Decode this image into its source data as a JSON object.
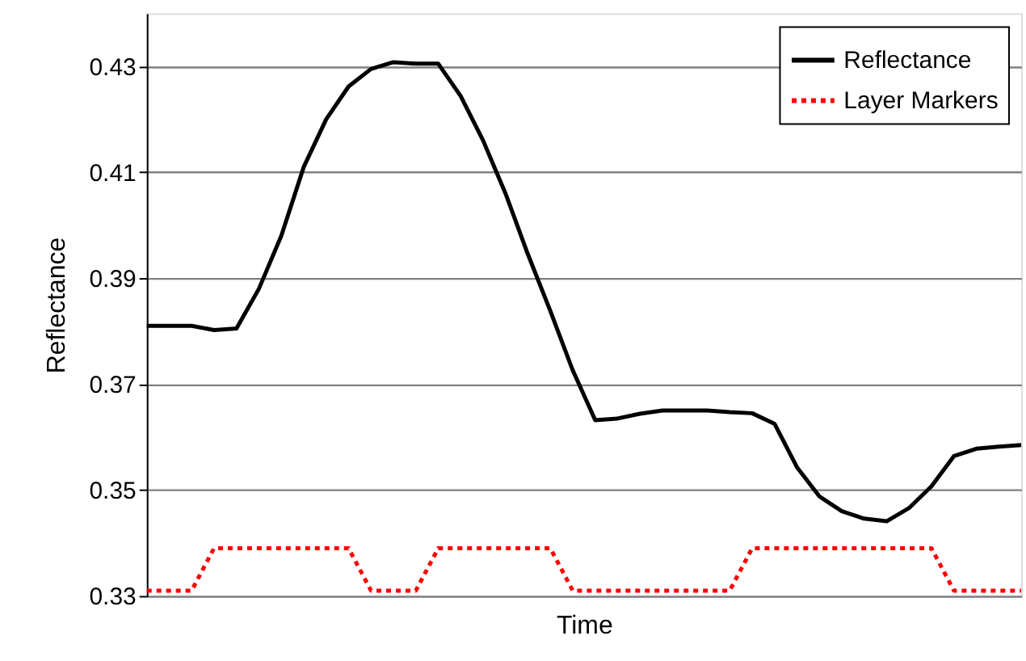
{
  "chart_data": {
    "type": "line",
    "xlabel": "Time",
    "ylabel": "Reflectance",
    "categories": [
      null,
      null,
      null,
      null,
      null,
      null,
      null,
      null,
      null,
      null,
      null,
      null,
      null,
      null,
      null,
      null,
      null,
      null,
      null,
      null,
      null,
      null,
      null,
      null,
      null,
      null,
      null,
      null,
      null,
      null,
      null,
      null,
      null,
      null,
      null,
      null,
      null,
      null,
      null,
      null
    ],
    "series": [
      {
        "name": "Reflectance",
        "color": "#000000",
        "line_style": "solid",
        "values": [
          0.381,
          0.381,
          0.381,
          0.3802,
          0.3805,
          0.388,
          0.398,
          0.411,
          0.42,
          0.4262,
          0.4295,
          0.4308,
          0.4305,
          0.4305,
          0.4244,
          0.416,
          0.406,
          0.3945,
          0.3838,
          0.3726,
          0.3632,
          0.3635,
          0.3644,
          0.365,
          0.365,
          0.365,
          0.3647,
          0.3645,
          0.3625,
          0.3543,
          0.3488,
          0.346,
          0.3446,
          0.3441,
          0.3466,
          0.3507,
          0.3564,
          0.3578,
          0.3582,
          0.3585
        ]
      },
      {
        "name": "Layer Markers",
        "color": "#ff0000",
        "line_style": "dotted",
        "values": [
          0.331,
          0.331,
          0.331,
          0.339,
          0.339,
          0.339,
          0.339,
          0.339,
          0.339,
          0.339,
          0.331,
          0.331,
          0.331,
          0.339,
          0.339,
          0.339,
          0.339,
          0.339,
          0.339,
          0.331,
          0.331,
          0.331,
          0.331,
          0.331,
          0.331,
          0.331,
          0.331,
          0.339,
          0.339,
          0.339,
          0.339,
          0.339,
          0.339,
          0.339,
          0.339,
          0.339,
          0.331,
          0.331,
          0.331,
          0.331
        ]
      }
    ],
    "ylim": [
      0.33,
      0.44
    ],
    "yticks": [
      0.33,
      0.35,
      0.37,
      0.39,
      0.41,
      0.43
    ],
    "grid": "y",
    "legend": "top right"
  }
}
